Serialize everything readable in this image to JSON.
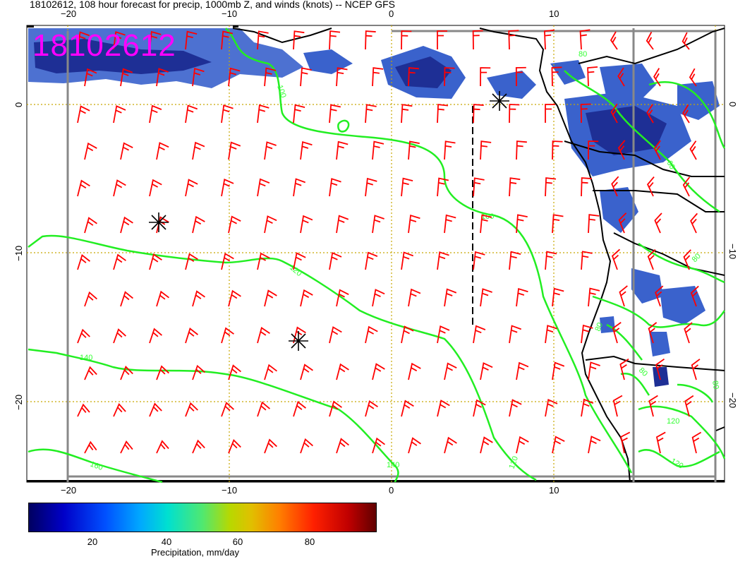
{
  "title": "18102612, 108 hour forecast for precip, 1000mb Z, and winds (knots) -- NCEP GFS",
  "date_stamp": "18102612",
  "axes": {
    "lon_ticks": [
      "−20",
      "−10",
      "0",
      "10"
    ],
    "lat_ticks_left": [
      "0",
      "−10",
      "−20"
    ],
    "lat_ticks_right": [
      "0",
      "−10",
      "−20"
    ]
  },
  "contour_labels": [
    "100",
    "100",
    "120",
    "120",
    "140",
    "140",
    "160",
    "120",
    "120",
    "80",
    "60",
    "80",
    "80",
    "80",
    "80"
  ],
  "colors": {
    "contour": "#22ee22",
    "barb": "#ff0000",
    "graticule": "#c8a800",
    "coast": "#000000",
    "precip_deep": "#1a2a90",
    "precip_mid": "#3060d8",
    "date_stamp": "#ff00ff"
  },
  "colorbar": {
    "ticks": [
      "20",
      "40",
      "60",
      "80"
    ],
    "label": "Precipitation, mm/day"
  },
  "markers": [
    "low-center-asterisk",
    "low-center-asterisk",
    "low-center-asterisk"
  ]
}
